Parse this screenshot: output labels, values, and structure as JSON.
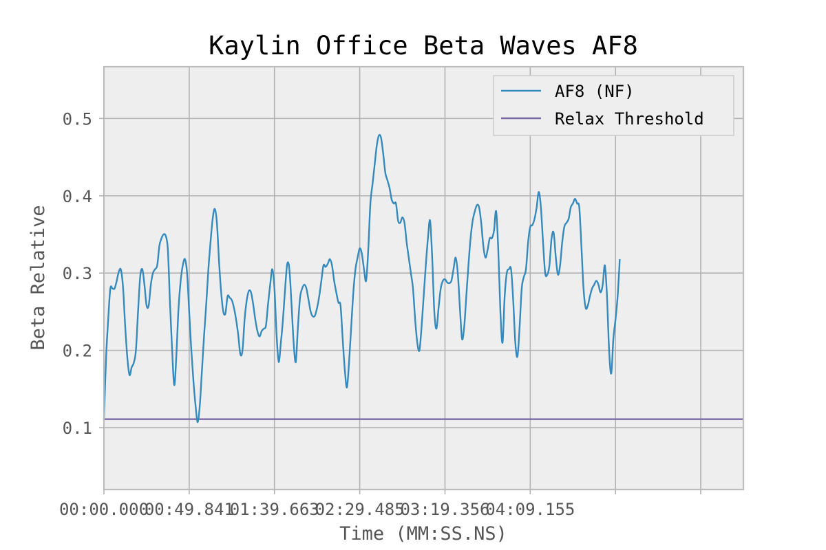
{
  "chart_data": {
    "type": "line",
    "title": "Kaylin Office Beta Waves AF8",
    "xlabel": "Time (MM:SS.NS)",
    "ylabel": "Beta Relative",
    "xlim": [
      0,
      300
    ],
    "ylim": [
      0.02,
      0.567
    ],
    "x_ticks": [
      {
        "value": 0,
        "label": "00:00.000"
      },
      {
        "value": 40,
        "label": "00:49.841"
      },
      {
        "value": 80,
        "label": "01:39.663"
      },
      {
        "value": 120,
        "label": "02:29.485"
      },
      {
        "value": 160,
        "label": "03:19.356"
      },
      {
        "value": 200,
        "label": "04:09.155"
      },
      {
        "value": 240,
        "label": ""
      },
      {
        "value": 280,
        "label": ""
      }
    ],
    "y_ticks": [
      {
        "value": 0.1,
        "label": "0.1"
      },
      {
        "value": 0.2,
        "label": "0.2"
      },
      {
        "value": 0.3,
        "label": "0.3"
      },
      {
        "value": 0.4,
        "label": "0.4"
      },
      {
        "value": 0.5,
        "label": "0.5"
      }
    ],
    "grid": true,
    "legend_position": "top-right",
    "colors": {
      "plot_background": "#eeeeef",
      "grid": "#b2b2b2",
      "frame": "#bcbcbc",
      "af8": "#348abd",
      "threshold": "#7a68a6"
    },
    "series": [
      {
        "name": "AF8 (NF)",
        "color": "#348abd",
        "points": [
          [
            0,
            0.11
          ],
          [
            1,
            0.19
          ],
          [
            2,
            0.24
          ],
          [
            3,
            0.28
          ],
          [
            4,
            0.28
          ],
          [
            5,
            0.28
          ],
          [
            6,
            0.29
          ],
          [
            7,
            0.302
          ],
          [
            8,
            0.304
          ],
          [
            9,
            0.28
          ],
          [
            10,
            0.23
          ],
          [
            11,
            0.19
          ],
          [
            12,
            0.168
          ],
          [
            13,
            0.178
          ],
          [
            14,
            0.184
          ],
          [
            15,
            0.2
          ],
          [
            16,
            0.25
          ],
          [
            17,
            0.295
          ],
          [
            18,
            0.305
          ],
          [
            19,
            0.285
          ],
          [
            20,
            0.258
          ],
          [
            21,
            0.258
          ],
          [
            22,
            0.285
          ],
          [
            23,
            0.3
          ],
          [
            24,
            0.305
          ],
          [
            25,
            0.31
          ],
          [
            26,
            0.335
          ],
          [
            27,
            0.345
          ],
          [
            28,
            0.35
          ],
          [
            29,
            0.348
          ],
          [
            30,
            0.33
          ],
          [
            31,
            0.26
          ],
          [
            32,
            0.2
          ],
          [
            33,
            0.155
          ],
          [
            34,
            0.195
          ],
          [
            35,
            0.255
          ],
          [
            36,
            0.29
          ],
          [
            37,
            0.31
          ],
          [
            38,
            0.318
          ],
          [
            39,
            0.3
          ],
          [
            40,
            0.25
          ],
          [
            41,
            0.2
          ],
          [
            42,
            0.16
          ],
          [
            43,
            0.128
          ],
          [
            44,
            0.107
          ],
          [
            45,
            0.13
          ],
          [
            46,
            0.175
          ],
          [
            47,
            0.22
          ],
          [
            48,
            0.26
          ],
          [
            49,
            0.305
          ],
          [
            50,
            0.34
          ],
          [
            51,
            0.37
          ],
          [
            52,
            0.383
          ],
          [
            53,
            0.365
          ],
          [
            54,
            0.315
          ],
          [
            55,
            0.275
          ],
          [
            56,
            0.25
          ],
          [
            57,
            0.248
          ],
          [
            58,
            0.27
          ],
          [
            59,
            0.268
          ],
          [
            60,
            0.265
          ],
          [
            61,
            0.255
          ],
          [
            62,
            0.24
          ],
          [
            63,
            0.22
          ],
          [
            64,
            0.195
          ],
          [
            65,
            0.2
          ],
          [
            66,
            0.24
          ],
          [
            67,
            0.265
          ],
          [
            68,
            0.277
          ],
          [
            69,
            0.275
          ],
          [
            70,
            0.26
          ],
          [
            71,
            0.24
          ],
          [
            72,
            0.225
          ],
          [
            73,
            0.218
          ],
          [
            74,
            0.225
          ],
          [
            75,
            0.228
          ],
          [
            76,
            0.232
          ],
          [
            77,
            0.26
          ],
          [
            78,
            0.285
          ],
          [
            79,
            0.305
          ],
          [
            80,
            0.28
          ],
          [
            81,
            0.22
          ],
          [
            82,
            0.185
          ],
          [
            83,
            0.21
          ],
          [
            84,
            0.24
          ],
          [
            85,
            0.28
          ],
          [
            86,
            0.312
          ],
          [
            87,
            0.305
          ],
          [
            88,
            0.26
          ],
          [
            89,
            0.21
          ],
          [
            90,
            0.185
          ],
          [
            91,
            0.23
          ],
          [
            92,
            0.268
          ],
          [
            93,
            0.28
          ],
          [
            94,
            0.285
          ],
          [
            95,
            0.28
          ],
          [
            96,
            0.265
          ],
          [
            97,
            0.25
          ],
          [
            98,
            0.244
          ],
          [
            99,
            0.245
          ],
          [
            100,
            0.255
          ],
          [
            101,
            0.27
          ],
          [
            102,
            0.29
          ],
          [
            103,
            0.31
          ],
          [
            104,
            0.308
          ],
          [
            105,
            0.312
          ],
          [
            106,
            0.318
          ],
          [
            107,
            0.31
          ],
          [
            108,
            0.29
          ],
          [
            109,
            0.275
          ],
          [
            110,
            0.262
          ],
          [
            111,
            0.258
          ],
          [
            112,
            0.215
          ],
          [
            113,
            0.175
          ],
          [
            114,
            0.152
          ],
          [
            115,
            0.185
          ],
          [
            116,
            0.23
          ],
          [
            117,
            0.275
          ],
          [
            118,
            0.305
          ],
          [
            119,
            0.32
          ],
          [
            120,
            0.332
          ],
          [
            121,
            0.325
          ],
          [
            122,
            0.305
          ],
          [
            123,
            0.29
          ],
          [
            124,
            0.33
          ],
          [
            125,
            0.39
          ],
          [
            126,
            0.415
          ],
          [
            127,
            0.44
          ],
          [
            128,
            0.465
          ],
          [
            129,
            0.478
          ],
          [
            130,
            0.475
          ],
          [
            131,
            0.455
          ],
          [
            132,
            0.43
          ],
          [
            133,
            0.42
          ],
          [
            134,
            0.41
          ],
          [
            135,
            0.395
          ],
          [
            136,
            0.39
          ],
          [
            137,
            0.39
          ],
          [
            138,
            0.368
          ],
          [
            139,
            0.365
          ],
          [
            140,
            0.372
          ],
          [
            141,
            0.365
          ],
          [
            142,
            0.34
          ],
          [
            143,
            0.32
          ],
          [
            144,
            0.3
          ],
          [
            145,
            0.28
          ],
          [
            146,
            0.24
          ],
          [
            147,
            0.21
          ],
          [
            148,
            0.2
          ],
          [
            149,
            0.23
          ],
          [
            150,
            0.27
          ],
          [
            151,
            0.31
          ],
          [
            152,
            0.345
          ],
          [
            153,
            0.368
          ],
          [
            154,
            0.32
          ],
          [
            155,
            0.25
          ],
          [
            156,
            0.228
          ],
          [
            157,
            0.255
          ],
          [
            158,
            0.28
          ],
          [
            159,
            0.29
          ],
          [
            160,
            0.292
          ],
          [
            161,
            0.288
          ],
          [
            162,
            0.287
          ],
          [
            163,
            0.29
          ],
          [
            164,
            0.305
          ],
          [
            165,
            0.32
          ],
          [
            166,
            0.3
          ],
          [
            167,
            0.255
          ],
          [
            168,
            0.215
          ],
          [
            169,
            0.23
          ],
          [
            170,
            0.27
          ],
          [
            171,
            0.31
          ],
          [
            172,
            0.345
          ],
          [
            173,
            0.368
          ],
          [
            174,
            0.38
          ],
          [
            175,
            0.388
          ],
          [
            176,
            0.385
          ],
          [
            177,
            0.365
          ],
          [
            178,
            0.335
          ],
          [
            179,
            0.32
          ],
          [
            180,
            0.33
          ],
          [
            181,
            0.345
          ],
          [
            182,
            0.345
          ],
          [
            183,
            0.355
          ],
          [
            184,
            0.38
          ],
          [
            185,
            0.33
          ],
          [
            186,
            0.25
          ],
          [
            187,
            0.21
          ],
          [
            188,
            0.27
          ],
          [
            189,
            0.3
          ],
          [
            190,
            0.305
          ],
          [
            191,
            0.305
          ],
          [
            192,
            0.265
          ],
          [
            193,
            0.21
          ],
          [
            194,
            0.192
          ],
          [
            195,
            0.23
          ],
          [
            196,
            0.28
          ],
          [
            197,
            0.295
          ],
          [
            198,
            0.305
          ],
          [
            199,
            0.34
          ],
          [
            200,
            0.36
          ],
          [
            201,
            0.362
          ],
          [
            202,
            0.37
          ],
          [
            203,
            0.385
          ],
          [
            204,
            0.405
          ],
          [
            205,
            0.385
          ],
          [
            206,
            0.34
          ],
          [
            207,
            0.3
          ],
          [
            208,
            0.298
          ],
          [
            209,
            0.31
          ],
          [
            210,
            0.345
          ],
          [
            211,
            0.352
          ],
          [
            212,
            0.32
          ],
          [
            213,
            0.298
          ],
          [
            214,
            0.31
          ],
          [
            215,
            0.34
          ],
          [
            216,
            0.36
          ],
          [
            217,
            0.365
          ],
          [
            218,
            0.37
          ],
          [
            219,
            0.385
          ],
          [
            220,
            0.39
          ],
          [
            221,
            0.396
          ],
          [
            222,
            0.39
          ],
          [
            223,
            0.385
          ],
          [
            224,
            0.335
          ],
          [
            225,
            0.28
          ],
          [
            226,
            0.255
          ],
          [
            227,
            0.258
          ],
          [
            228,
            0.27
          ],
          [
            229,
            0.28
          ],
          [
            230,
            0.285
          ],
          [
            231,
            0.29
          ],
          [
            232,
            0.285
          ],
          [
            233,
            0.275
          ],
          [
            234,
            0.285
          ],
          [
            235,
            0.31
          ],
          [
            236,
            0.27
          ],
          [
            237,
            0.2
          ],
          [
            238,
            0.17
          ],
          [
            239,
            0.215
          ],
          [
            240,
            0.24
          ],
          [
            241,
            0.27
          ],
          [
            242,
            0.318
          ]
        ]
      },
      {
        "name": "Relax Threshold",
        "color": "#7a68a6",
        "points": [
          [
            0,
            0.111
          ],
          [
            300,
            0.111
          ]
        ]
      }
    ]
  }
}
